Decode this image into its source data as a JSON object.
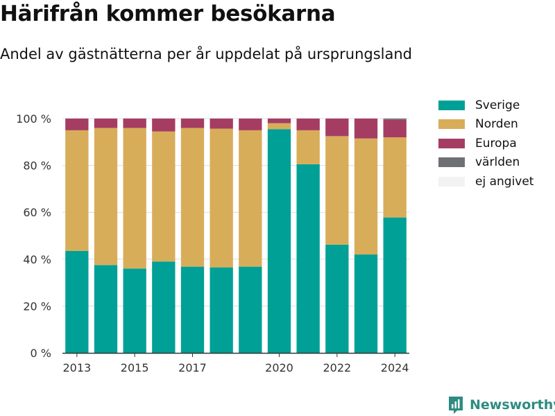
{
  "header": {
    "title": "Härifrån kommer besökarna",
    "subtitle": "Andel av gästnätterna per år uppdelat på ursprungsland"
  },
  "brand": {
    "name": "Newsworthy",
    "icon": "newsworthy-logo-icon",
    "color": "#2e8b82"
  },
  "chart_data": {
    "type": "bar",
    "stacked": true,
    "categories": [
      "2013",
      "2014",
      "2015",
      "2016",
      "2017",
      "2018",
      "2019",
      "2020",
      "2021",
      "2022",
      "2023",
      "2024"
    ],
    "x_ticks": [
      "2013",
      "2015",
      "2017",
      "2020",
      "2022",
      "2024"
    ],
    "y_ticks": [
      "0 %",
      "20 %",
      "40 %",
      "60 %",
      "80 %",
      "100 %"
    ],
    "ylim": [
      0,
      100
    ],
    "grid": true,
    "legend_position": "right",
    "series": [
      {
        "name": "Sverige",
        "color": "#00a096",
        "values": [
          43.5,
          37.5,
          36,
          39,
          36.8,
          36.5,
          36.8,
          95.5,
          80.5,
          46.2,
          42,
          57.8
        ]
      },
      {
        "name": "Norden",
        "color": "#d8ad5a",
        "values": [
          51.5,
          58.5,
          60,
          55.5,
          59.2,
          59.2,
          58.2,
          2.5,
          14.5,
          46.3,
          49.5,
          34.2
        ]
      },
      {
        "name": "Europa",
        "color": "#a53d63",
        "values": [
          5,
          4,
          4,
          5.5,
          4,
          4.3,
          5,
          2,
          5,
          7.5,
          8.5,
          7.5
        ]
      },
      {
        "name": "världen",
        "color": "#6f7074",
        "values": [
          0,
          0,
          0,
          0,
          0,
          0,
          0,
          0,
          0,
          0,
          0,
          0.5
        ]
      },
      {
        "name": "ej angivet",
        "color": "#f2f2f2",
        "values": [
          0,
          0,
          0,
          0,
          0,
          0,
          0,
          0,
          0,
          0,
          0,
          0
        ]
      }
    ]
  }
}
